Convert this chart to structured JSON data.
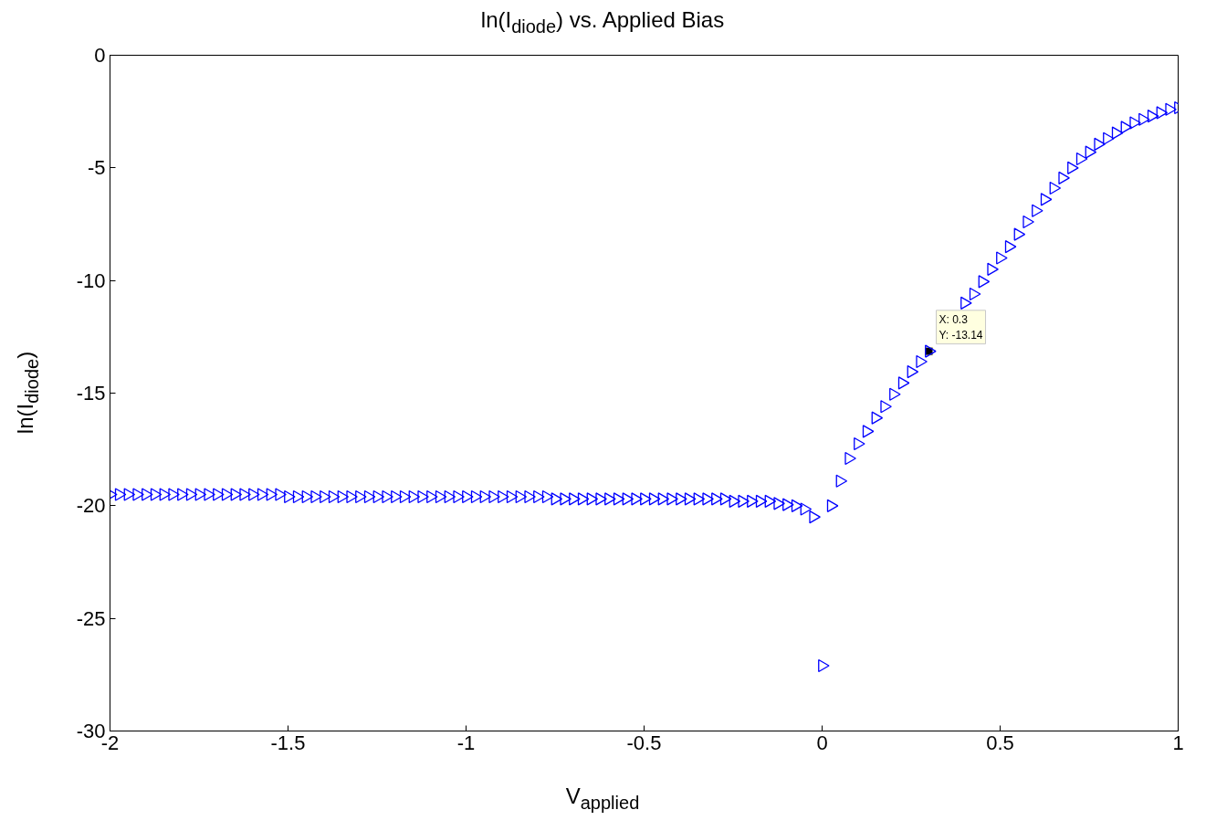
{
  "chart_data": {
    "type": "scatter",
    "title": "ln(I$_{diode}$) vs. Applied Bias",
    "xlabel": "V$_{applied}$",
    "ylabel": "ln(I$_{diode}$)",
    "x": [
      -2,
      -1.975,
      -1.95,
      -1.925,
      -1.9,
      -1.875,
      -1.85,
      -1.825,
      -1.8,
      -1.775,
      -1.75,
      -1.725,
      -1.7,
      -1.675,
      -1.65,
      -1.625,
      -1.6,
      -1.575,
      -1.55,
      -1.525,
      -1.5,
      -1.475,
      -1.45,
      -1.425,
      -1.4,
      -1.375,
      -1.35,
      -1.325,
      -1.3,
      -1.275,
      -1.25,
      -1.225,
      -1.2,
      -1.175,
      -1.15,
      -1.125,
      -1.1,
      -1.075,
      -1.05,
      -1.025,
      -1,
      -0.975,
      -0.95,
      -0.925,
      -0.9,
      -0.875,
      -0.85,
      -0.825,
      -0.8,
      -0.775,
      -0.75,
      -0.725,
      -0.7,
      -0.675,
      -0.65,
      -0.625,
      -0.6,
      -0.575,
      -0.55,
      -0.525,
      -0.5,
      -0.475,
      -0.45,
      -0.425,
      -0.4,
      -0.375,
      -0.35,
      -0.325,
      -0.3,
      -0.275,
      -0.25,
      -0.225,
      -0.2,
      -0.175,
      -0.15,
      -0.125,
      -0.1,
      -0.075,
      -0.05,
      -0.025,
      0,
      0.025,
      0.05,
      0.075,
      0.1,
      0.125,
      0.15,
      0.175,
      0.2,
      0.225,
      0.25,
      0.275,
      0.3,
      0.325,
      0.35,
      0.375,
      0.4,
      0.425,
      0.45,
      0.475,
      0.5,
      0.525,
      0.55,
      0.575,
      0.6,
      0.625,
      0.65,
      0.675,
      0.7,
      0.725,
      0.75,
      0.775,
      0.8,
      0.825,
      0.85,
      0.875,
      0.9,
      0.925,
      0.95,
      0.975,
      1
    ],
    "series": [
      {
        "color": "#0000ff",
        "values": [
          -19.5,
          -19.5,
          -19.5,
          -19.5,
          -19.5,
          -19.5,
          -19.5,
          -19.5,
          -19.5,
          -19.5,
          -19.5,
          -19.5,
          -19.5,
          -19.5,
          -19.5,
          -19.5,
          -19.5,
          -19.5,
          -19.5,
          -19.5,
          -19.6,
          -19.6,
          -19.6,
          -19.6,
          -19.6,
          -19.6,
          -19.6,
          -19.6,
          -19.6,
          -19.6,
          -19.6,
          -19.6,
          -19.6,
          -19.6,
          -19.6,
          -19.6,
          -19.6,
          -19.6,
          -19.6,
          -19.6,
          -19.6,
          -19.6,
          -19.6,
          -19.6,
          -19.6,
          -19.6,
          -19.6,
          -19.6,
          -19.6,
          -19.6,
          -19.7,
          -19.7,
          -19.7,
          -19.7,
          -19.7,
          -19.7,
          -19.7,
          -19.7,
          -19.7,
          -19.7,
          -19.7,
          -19.7,
          -19.7,
          -19.7,
          -19.7,
          -19.7,
          -19.7,
          -19.7,
          -19.7,
          -19.7,
          -19.8,
          -19.8,
          -19.8,
          -19.8,
          -19.8,
          -19.9,
          -19.95,
          -20.0,
          -20.15,
          -20.5,
          -27.1,
          -20.0,
          -18.9,
          -17.9,
          -17.25,
          -16.7,
          -16.1,
          -15.6,
          -15.05,
          -14.55,
          -14.05,
          -13.6,
          -13.14,
          null,
          null,
          null,
          -11.0,
          -10.6,
          -10.05,
          -9.5,
          -9.0,
          -8.5,
          -7.95,
          -7.4,
          -6.9,
          -6.4,
          -5.9,
          -5.45,
          -5.0,
          -4.6,
          -4.3,
          -3.95,
          -3.7,
          -3.45,
          -3.2,
          -3.0,
          -2.85,
          -2.7,
          -2.55,
          -2.4,
          -2.33
        ]
      }
    ],
    "marker": "triangle",
    "xlim": [
      -2,
      1
    ],
    "xticks": [
      -2,
      -1.5,
      -1,
      -0.5,
      0,
      0.5,
      1
    ],
    "ylim": [
      -30,
      0
    ],
    "yticks": [
      -30,
      -25,
      -20,
      -15,
      -10,
      -5,
      0
    ],
    "grid": false,
    "annotations": [
      {
        "text": "X: 0.3\nY: -13.14",
        "x": 0.3,
        "y": -13.14
      }
    ]
  }
}
